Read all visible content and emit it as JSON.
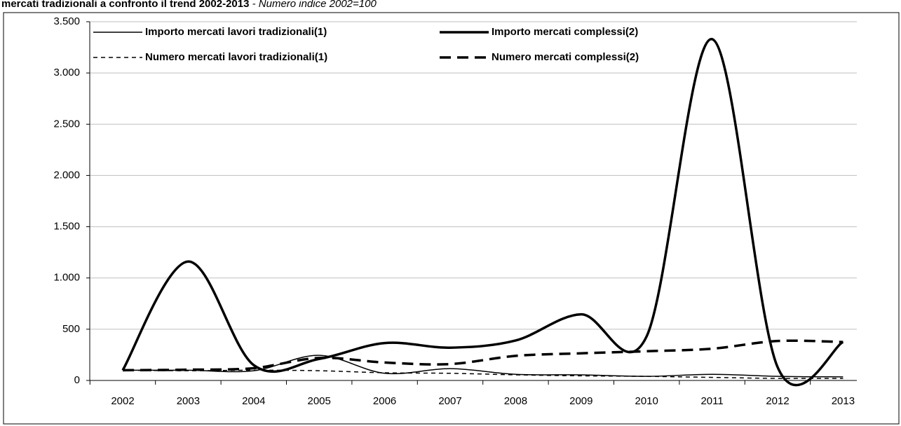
{
  "chart_data": {
    "type": "line",
    "title": "mercati tradizionali a confronto il trend 2002-2013",
    "subtitle": " - Numero indice 2002=100",
    "categories": [
      "2002",
      "2003",
      "2004",
      "2005",
      "2006",
      "2007",
      "2008",
      "2009",
      "2010",
      "2011",
      "2012",
      "2013"
    ],
    "series": [
      {
        "name": "Importo mercati lavori tradizionali(1)",
        "color": "#000000",
        "style": "solid",
        "width": 1.5,
        "values": [
          100,
          100,
          95,
          245,
          70,
          115,
          60,
          55,
          40,
          60,
          40,
          35
        ]
      },
      {
        "name": "Importo mercati complessi(2)",
        "color": "#000000",
        "style": "solid",
        "width": 3.5,
        "values": [
          100,
          1160,
          150,
          210,
          365,
          320,
          390,
          645,
          430,
          3330,
          130,
          375
        ]
      },
      {
        "name": "Numero mercati lavori tradizionali(1)",
        "color": "#000000",
        "style": "dashed",
        "width": 1.5,
        "values": [
          100,
          95,
          100,
          95,
          75,
          70,
          55,
          45,
          40,
          30,
          20,
          20
        ]
      },
      {
        "name": "Numero mercati complessi(2)",
        "color": "#000000",
        "style": "dashed",
        "width": 3.5,
        "values": [
          100,
          105,
          120,
          220,
          175,
          160,
          240,
          265,
          285,
          310,
          385,
          375
        ]
      }
    ],
    "ylim": [
      0,
      3500
    ],
    "yticks": [
      0,
      500,
      {
        "value": 1000,
        "label": "1.000"
      },
      {
        "value": 1500,
        "label": "1.500"
      },
      {
        "value": 2000,
        "label": "2.000"
      },
      {
        "value": 2500,
        "label": "2.500"
      },
      {
        "value": 3000,
        "label": "3.000"
      },
      {
        "value": 3500,
        "label": "3.500"
      }
    ],
    "grid": true,
    "legend": "top"
  }
}
